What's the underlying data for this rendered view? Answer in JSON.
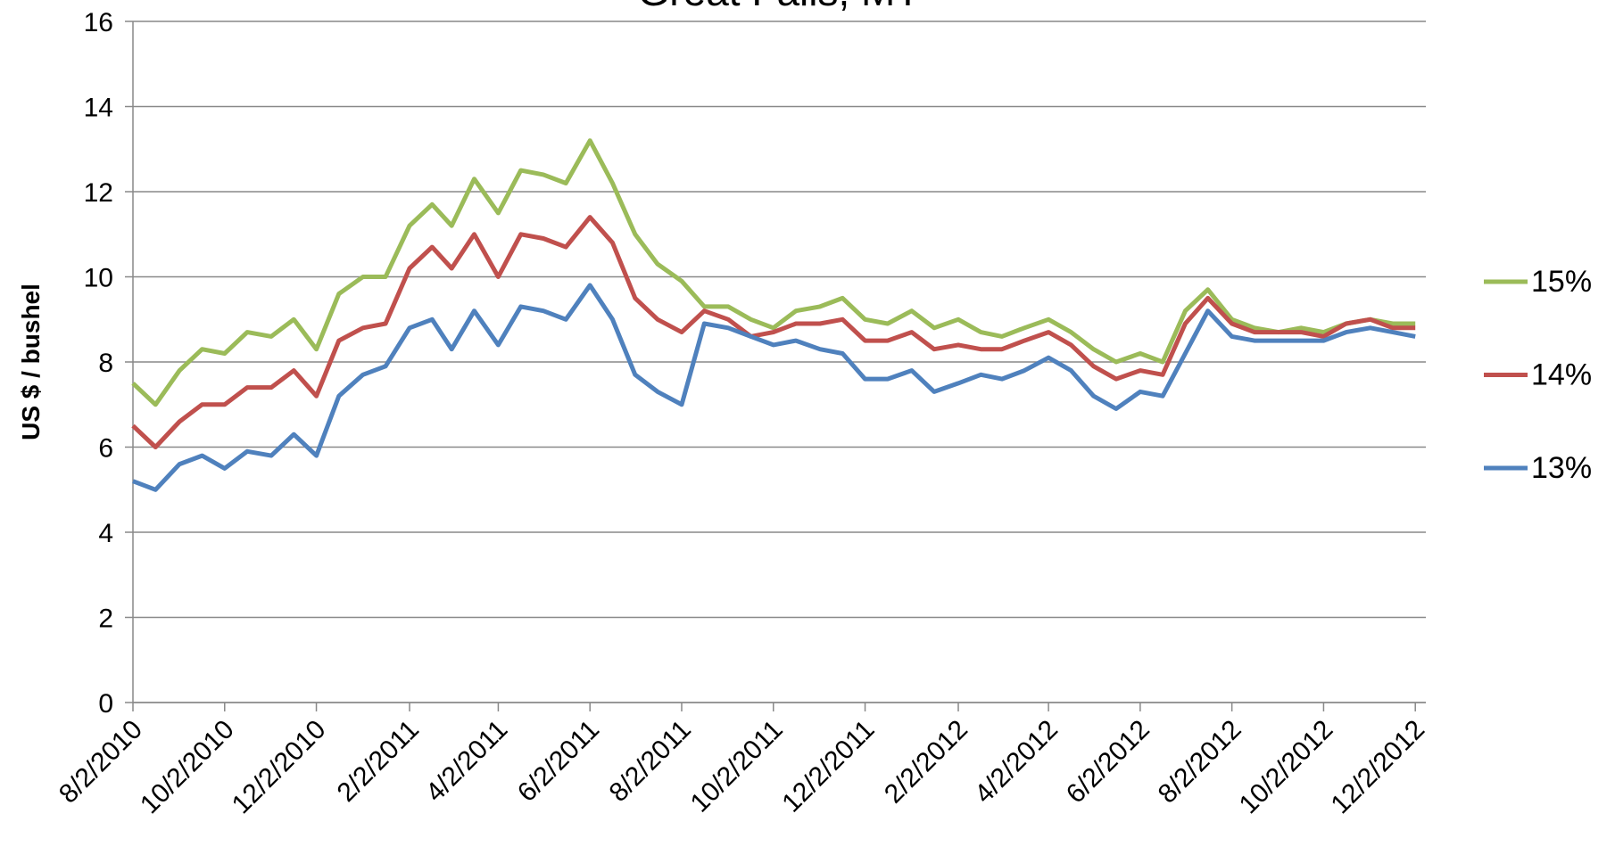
{
  "chart_data": {
    "type": "line",
    "title": "Great Falls, MT",
    "y_label": "US $ / bushel",
    "x": [
      "2010-08-02",
      "2010-08-17",
      "2010-09-02",
      "2010-09-17",
      "2010-10-02",
      "2010-10-17",
      "2010-11-02",
      "2010-11-17",
      "2010-12-02",
      "2010-12-17",
      "2011-01-02",
      "2011-01-17",
      "2011-02-02",
      "2011-02-17",
      "2011-03-02",
      "2011-03-17",
      "2011-04-02",
      "2011-04-17",
      "2011-05-02",
      "2011-05-17",
      "2011-06-02",
      "2011-06-17",
      "2011-07-02",
      "2011-07-17",
      "2011-08-02",
      "2011-08-17",
      "2011-09-02",
      "2011-09-17",
      "2011-10-02",
      "2011-10-17",
      "2011-11-02",
      "2011-11-17",
      "2011-12-02",
      "2011-12-17",
      "2012-01-02",
      "2012-01-17",
      "2012-02-02",
      "2012-02-17",
      "2012-03-02",
      "2012-03-17",
      "2012-04-02",
      "2012-04-17",
      "2012-05-02",
      "2012-05-17",
      "2012-06-02",
      "2012-06-17",
      "2012-07-02",
      "2012-07-17",
      "2012-08-02",
      "2012-08-17",
      "2012-09-02",
      "2012-09-17",
      "2012-10-02",
      "2012-10-17",
      "2012-11-02",
      "2012-11-17",
      "2012-12-02"
    ],
    "series": [
      {
        "name": "15%",
        "color": "#9bbb59",
        "values": [
          7.5,
          7.0,
          7.8,
          8.3,
          8.2,
          8.7,
          8.6,
          9.0,
          8.3,
          9.6,
          10.0,
          10.0,
          11.2,
          11.7,
          11.2,
          12.3,
          11.5,
          12.5,
          12.4,
          12.2,
          13.2,
          12.2,
          11.0,
          10.3,
          9.9,
          9.3,
          9.3,
          9.0,
          8.8,
          9.2,
          9.3,
          9.5,
          9.0,
          8.9,
          9.2,
          8.8,
          9.0,
          8.7,
          8.6,
          8.8,
          9.0,
          8.7,
          8.3,
          8.0,
          8.2,
          8.0,
          9.2,
          9.7,
          9.0,
          8.8,
          8.7,
          8.8,
          8.7,
          8.9,
          9.0,
          8.9,
          8.9
        ]
      },
      {
        "name": "14%",
        "color": "#c0504d",
        "values": [
          6.5,
          6.0,
          6.6,
          7.0,
          7.0,
          7.4,
          7.4,
          7.8,
          7.2,
          8.5,
          8.8,
          8.9,
          10.2,
          10.7,
          10.2,
          11.0,
          10.0,
          11.0,
          10.9,
          10.7,
          11.4,
          10.8,
          9.5,
          9.0,
          8.7,
          9.2,
          9.0,
          8.6,
          8.7,
          8.9,
          8.9,
          9.0,
          8.5,
          8.5,
          8.7,
          8.3,
          8.4,
          8.3,
          8.3,
          8.5,
          8.7,
          8.4,
          7.9,
          7.6,
          7.8,
          7.7,
          8.9,
          9.5,
          8.9,
          8.7,
          8.7,
          8.7,
          8.6,
          8.9,
          9.0,
          8.8,
          8.8
        ]
      },
      {
        "name": "13%",
        "color": "#4f81bd",
        "values": [
          5.2,
          5.0,
          5.6,
          5.8,
          5.5,
          5.9,
          5.8,
          6.3,
          5.8,
          7.2,
          7.7,
          7.9,
          8.8,
          9.0,
          8.3,
          9.2,
          8.4,
          9.3,
          9.2,
          9.0,
          9.8,
          9.0,
          7.7,
          7.3,
          7.0,
          8.9,
          8.8,
          8.6,
          8.4,
          8.5,
          8.3,
          8.2,
          7.6,
          7.6,
          7.8,
          7.3,
          7.5,
          7.7,
          7.6,
          7.8,
          8.1,
          7.8,
          7.2,
          6.9,
          7.3,
          7.2,
          8.2,
          9.2,
          8.6,
          8.5,
          8.5,
          8.5,
          8.5,
          8.7,
          8.8,
          8.7,
          8.6
        ]
      }
    ],
    "xlim": [
      "2010-08-02",
      "2012-12-09"
    ],
    "xticks": [
      {
        "value": "2010-08-02",
        "label": "8/2/2010"
      },
      {
        "value": "2010-10-02",
        "label": "10/2/2010"
      },
      {
        "value": "2010-12-02",
        "label": "12/2/2010"
      },
      {
        "value": "2011-02-02",
        "label": "2/2/2011"
      },
      {
        "value": "2011-04-02",
        "label": "4/2/2011"
      },
      {
        "value": "2011-06-02",
        "label": "6/2/2011"
      },
      {
        "value": "2011-08-02",
        "label": "8/2/2011"
      },
      {
        "value": "2011-10-02",
        "label": "10/2/2011"
      },
      {
        "value": "2011-12-02",
        "label": "12/2/2011"
      },
      {
        "value": "2012-02-02",
        "label": "2/2/2012"
      },
      {
        "value": "2012-04-02",
        "label": "4/2/2012"
      },
      {
        "value": "2012-06-02",
        "label": "6/2/2012"
      },
      {
        "value": "2012-08-02",
        "label": "8/2/2012"
      },
      {
        "value": "2012-10-02",
        "label": "10/2/2012"
      },
      {
        "value": "2012-12-02",
        "label": "12/2/2012"
      }
    ],
    "ylim": [
      0,
      16
    ],
    "yticks": [
      0,
      2,
      4,
      6,
      8,
      10,
      12,
      14,
      16
    ],
    "grid": true,
    "legend": "right"
  }
}
